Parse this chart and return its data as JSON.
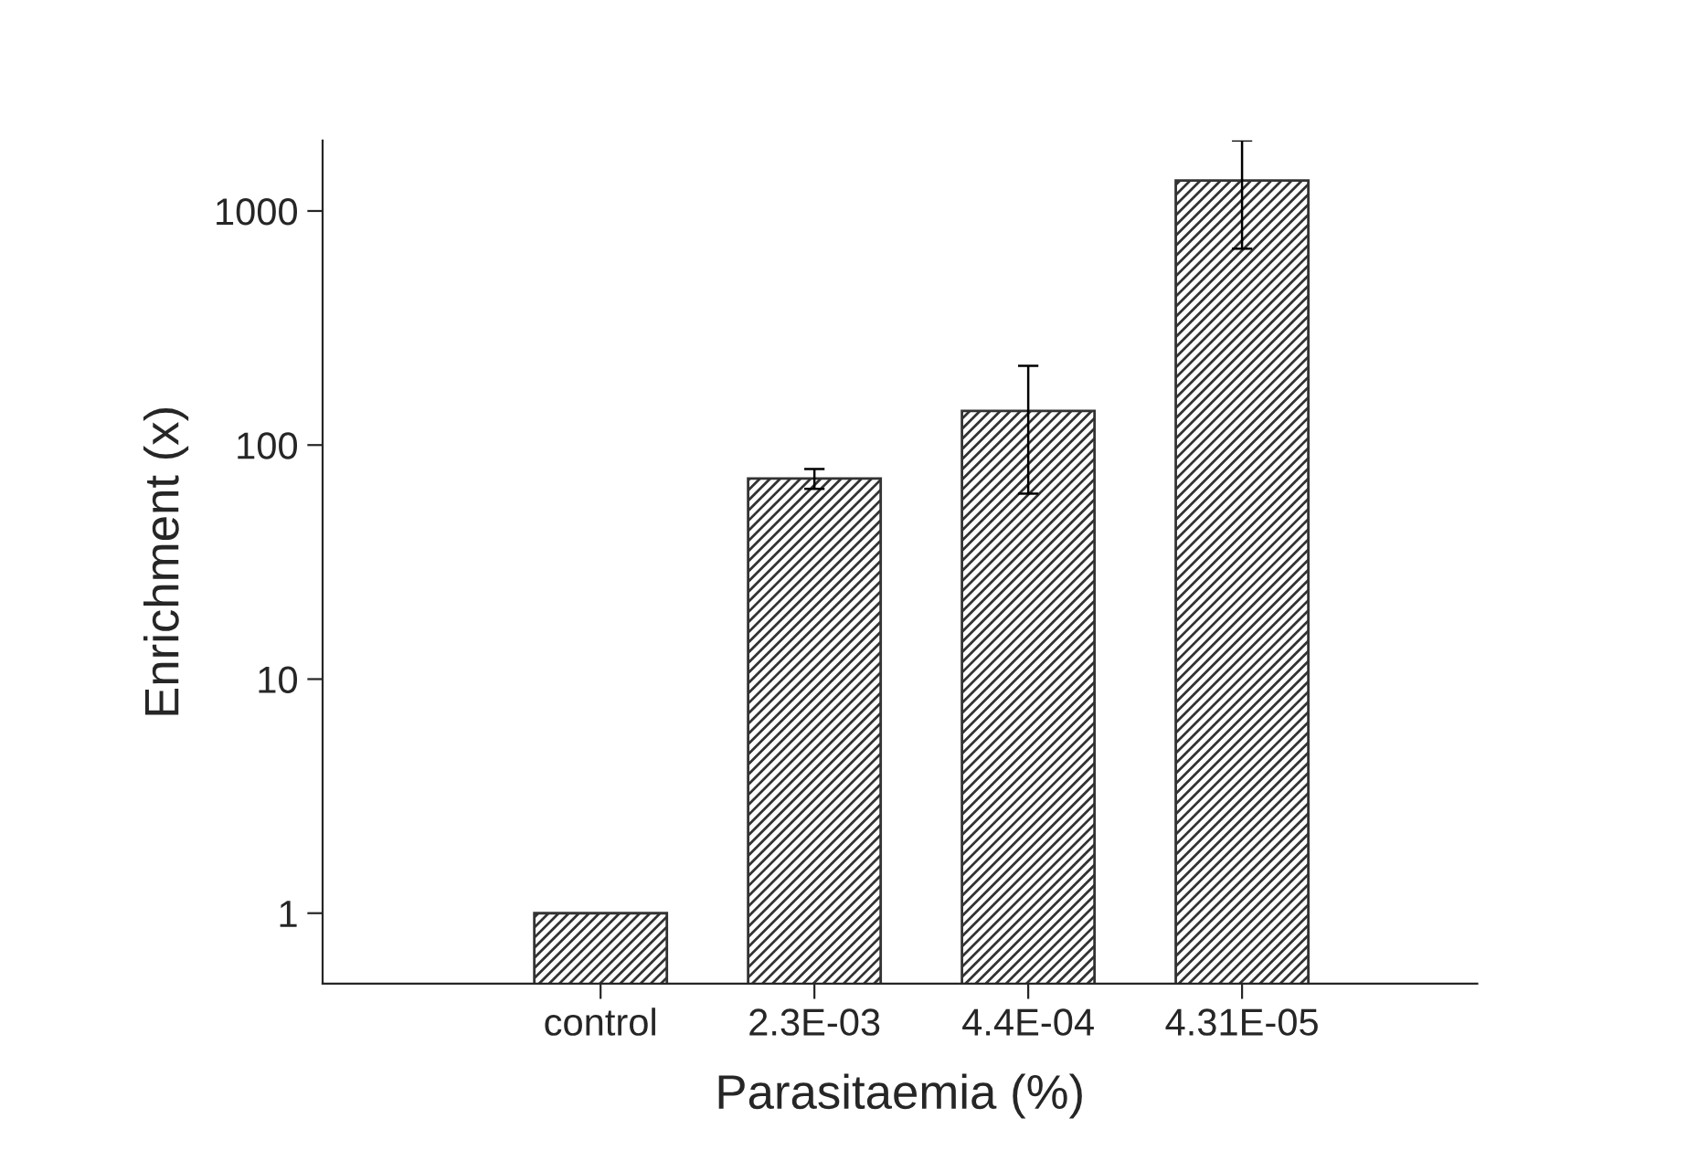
{
  "chart_data": {
    "type": "bar",
    "xlabel": "Parasitaemia (%)",
    "ylabel": "Enrichment (x)",
    "categories": [
      "control",
      "2.3E-03",
      "4.4E-04",
      "4.31E-05"
    ],
    "values": [
      1,
      72,
      140,
      1350
    ],
    "errors": [
      null,
      7,
      78,
      [
        690,
        2000
      ]
    ],
    "color": "#333333",
    "log": true,
    "ylim": [
      0.5,
      2000
    ],
    "yticks": [
      1,
      10,
      100,
      1000
    ],
    "grid": false
  }
}
